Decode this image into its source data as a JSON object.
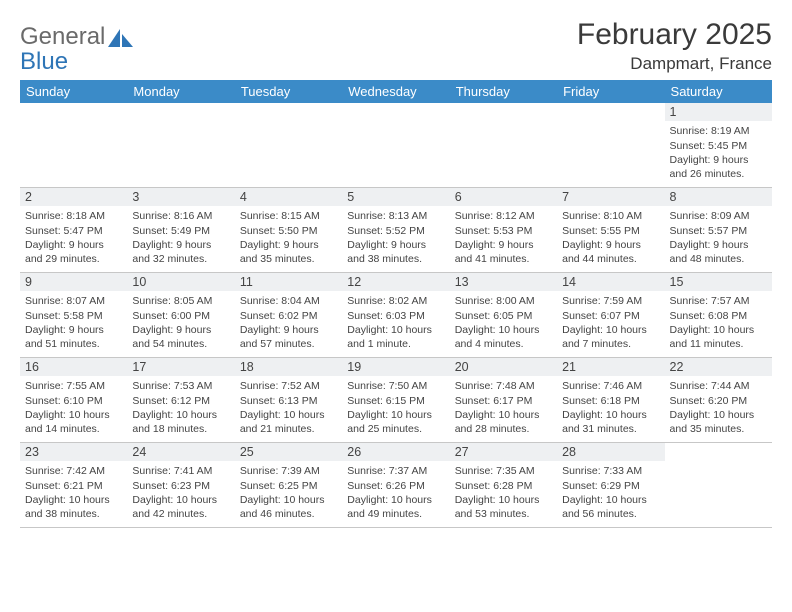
{
  "logo": {
    "line1": "General",
    "line2": "Blue"
  },
  "title": "February 2025",
  "location": "Dampmart, France",
  "colors": {
    "header_bg": "#3b8bc8",
    "header_text": "#ffffff",
    "daynum_bg": "#eef0f2",
    "body_text": "#444444",
    "page_bg": "#ffffff",
    "logo_gray": "#6a6a6a",
    "logo_blue": "#2e75b6"
  },
  "day_names": [
    "Sunday",
    "Monday",
    "Tuesday",
    "Wednesday",
    "Thursday",
    "Friday",
    "Saturday"
  ],
  "weeks": [
    [
      null,
      null,
      null,
      null,
      null,
      null,
      {
        "n": "1",
        "sr": "Sunrise: 8:19 AM",
        "ss": "Sunset: 5:45 PM",
        "d1": "Daylight: 9 hours",
        "d2": "and 26 minutes."
      }
    ],
    [
      {
        "n": "2",
        "sr": "Sunrise: 8:18 AM",
        "ss": "Sunset: 5:47 PM",
        "d1": "Daylight: 9 hours",
        "d2": "and 29 minutes."
      },
      {
        "n": "3",
        "sr": "Sunrise: 8:16 AM",
        "ss": "Sunset: 5:49 PM",
        "d1": "Daylight: 9 hours",
        "d2": "and 32 minutes."
      },
      {
        "n": "4",
        "sr": "Sunrise: 8:15 AM",
        "ss": "Sunset: 5:50 PM",
        "d1": "Daylight: 9 hours",
        "d2": "and 35 minutes."
      },
      {
        "n": "5",
        "sr": "Sunrise: 8:13 AM",
        "ss": "Sunset: 5:52 PM",
        "d1": "Daylight: 9 hours",
        "d2": "and 38 minutes."
      },
      {
        "n": "6",
        "sr": "Sunrise: 8:12 AM",
        "ss": "Sunset: 5:53 PM",
        "d1": "Daylight: 9 hours",
        "d2": "and 41 minutes."
      },
      {
        "n": "7",
        "sr": "Sunrise: 8:10 AM",
        "ss": "Sunset: 5:55 PM",
        "d1": "Daylight: 9 hours",
        "d2": "and 44 minutes."
      },
      {
        "n": "8",
        "sr": "Sunrise: 8:09 AM",
        "ss": "Sunset: 5:57 PM",
        "d1": "Daylight: 9 hours",
        "d2": "and 48 minutes."
      }
    ],
    [
      {
        "n": "9",
        "sr": "Sunrise: 8:07 AM",
        "ss": "Sunset: 5:58 PM",
        "d1": "Daylight: 9 hours",
        "d2": "and 51 minutes."
      },
      {
        "n": "10",
        "sr": "Sunrise: 8:05 AM",
        "ss": "Sunset: 6:00 PM",
        "d1": "Daylight: 9 hours",
        "d2": "and 54 minutes."
      },
      {
        "n": "11",
        "sr": "Sunrise: 8:04 AM",
        "ss": "Sunset: 6:02 PM",
        "d1": "Daylight: 9 hours",
        "d2": "and 57 minutes."
      },
      {
        "n": "12",
        "sr": "Sunrise: 8:02 AM",
        "ss": "Sunset: 6:03 PM",
        "d1": "Daylight: 10 hours",
        "d2": "and 1 minute."
      },
      {
        "n": "13",
        "sr": "Sunrise: 8:00 AM",
        "ss": "Sunset: 6:05 PM",
        "d1": "Daylight: 10 hours",
        "d2": "and 4 minutes."
      },
      {
        "n": "14",
        "sr": "Sunrise: 7:59 AM",
        "ss": "Sunset: 6:07 PM",
        "d1": "Daylight: 10 hours",
        "d2": "and 7 minutes."
      },
      {
        "n": "15",
        "sr": "Sunrise: 7:57 AM",
        "ss": "Sunset: 6:08 PM",
        "d1": "Daylight: 10 hours",
        "d2": "and 11 minutes."
      }
    ],
    [
      {
        "n": "16",
        "sr": "Sunrise: 7:55 AM",
        "ss": "Sunset: 6:10 PM",
        "d1": "Daylight: 10 hours",
        "d2": "and 14 minutes."
      },
      {
        "n": "17",
        "sr": "Sunrise: 7:53 AM",
        "ss": "Sunset: 6:12 PM",
        "d1": "Daylight: 10 hours",
        "d2": "and 18 minutes."
      },
      {
        "n": "18",
        "sr": "Sunrise: 7:52 AM",
        "ss": "Sunset: 6:13 PM",
        "d1": "Daylight: 10 hours",
        "d2": "and 21 minutes."
      },
      {
        "n": "19",
        "sr": "Sunrise: 7:50 AM",
        "ss": "Sunset: 6:15 PM",
        "d1": "Daylight: 10 hours",
        "d2": "and 25 minutes."
      },
      {
        "n": "20",
        "sr": "Sunrise: 7:48 AM",
        "ss": "Sunset: 6:17 PM",
        "d1": "Daylight: 10 hours",
        "d2": "and 28 minutes."
      },
      {
        "n": "21",
        "sr": "Sunrise: 7:46 AM",
        "ss": "Sunset: 6:18 PM",
        "d1": "Daylight: 10 hours",
        "d2": "and 31 minutes."
      },
      {
        "n": "22",
        "sr": "Sunrise: 7:44 AM",
        "ss": "Sunset: 6:20 PM",
        "d1": "Daylight: 10 hours",
        "d2": "and 35 minutes."
      }
    ],
    [
      {
        "n": "23",
        "sr": "Sunrise: 7:42 AM",
        "ss": "Sunset: 6:21 PM",
        "d1": "Daylight: 10 hours",
        "d2": "and 38 minutes."
      },
      {
        "n": "24",
        "sr": "Sunrise: 7:41 AM",
        "ss": "Sunset: 6:23 PM",
        "d1": "Daylight: 10 hours",
        "d2": "and 42 minutes."
      },
      {
        "n": "25",
        "sr": "Sunrise: 7:39 AM",
        "ss": "Sunset: 6:25 PM",
        "d1": "Daylight: 10 hours",
        "d2": "and 46 minutes."
      },
      {
        "n": "26",
        "sr": "Sunrise: 7:37 AM",
        "ss": "Sunset: 6:26 PM",
        "d1": "Daylight: 10 hours",
        "d2": "and 49 minutes."
      },
      {
        "n": "27",
        "sr": "Sunrise: 7:35 AM",
        "ss": "Sunset: 6:28 PM",
        "d1": "Daylight: 10 hours",
        "d2": "and 53 minutes."
      },
      {
        "n": "28",
        "sr": "Sunrise: 7:33 AM",
        "ss": "Sunset: 6:29 PM",
        "d1": "Daylight: 10 hours",
        "d2": "and 56 minutes."
      },
      null
    ]
  ]
}
